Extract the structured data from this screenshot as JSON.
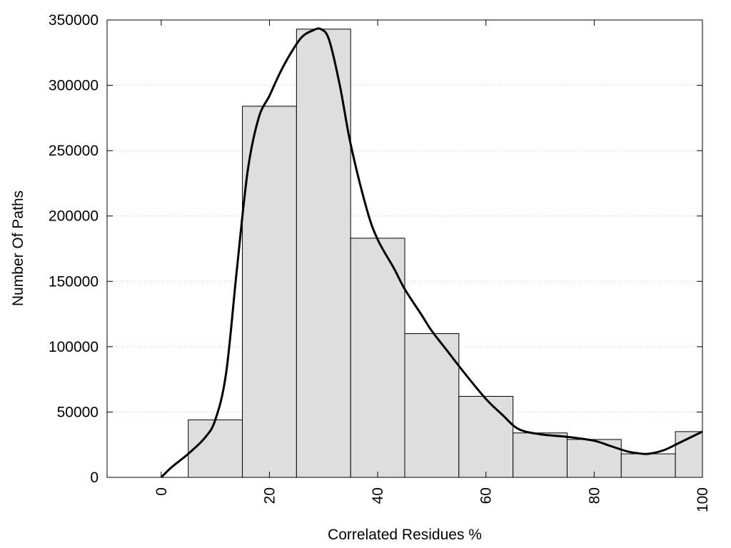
{
  "chart_data": {
    "type": "bar",
    "title": "",
    "xlabel": "Correlated Residues %",
    "ylabel": "Number Of Paths",
    "xlim": [
      -10,
      100
    ],
    "ylim": [
      0,
      350000
    ],
    "x_ticks": [
      "0",
      "20",
      "40",
      "60",
      "80",
      "100"
    ],
    "x_tick_values": [
      0,
      20,
      40,
      60,
      80,
      100
    ],
    "y_ticks": [
      "0",
      "50000",
      "100000",
      "150000",
      "200000",
      "250000",
      "300000",
      "350000"
    ],
    "y_tick_values": [
      0,
      50000,
      100000,
      150000,
      200000,
      250000,
      300000,
      350000
    ],
    "grid": "horizontal dotted",
    "bin_width": 10,
    "bins": [
      {
        "center": 10,
        "value": 44000
      },
      {
        "center": 20,
        "value": 284000
      },
      {
        "center": 30,
        "value": 343000
      },
      {
        "center": 40,
        "value": 183000
      },
      {
        "center": 50,
        "value": 110000
      },
      {
        "center": 60,
        "value": 62000
      },
      {
        "center": 70,
        "value": 34000
      },
      {
        "center": 80,
        "value": 29000
      },
      {
        "center": 90,
        "value": 18000
      },
      {
        "center": 100,
        "value": 35000
      }
    ],
    "curve": {
      "type": "line",
      "x": [
        0,
        2,
        5,
        8,
        10,
        12,
        14,
        16,
        18,
        20,
        22,
        24,
        26,
        28,
        29.5,
        31,
        33,
        35,
        38,
        40,
        43,
        45,
        48,
        50,
        53,
        56,
        60,
        63,
        66,
        70,
        75,
        80,
        83,
        86,
        88,
        90,
        93,
        96,
        100
      ],
      "y": [
        0,
        8000,
        18000,
        30000,
        44000,
        80000,
        160000,
        235000,
        275000,
        292000,
        310000,
        325000,
        337000,
        342000,
        343000,
        335000,
        300000,
        255000,
        205000,
        182000,
        160000,
        144000,
        125000,
        112000,
        96000,
        80000,
        60000,
        48000,
        37000,
        33000,
        31000,
        28000,
        24000,
        20000,
        18500,
        18000,
        21000,
        27000,
        35000
      ]
    },
    "colors": {
      "bar_fill": "#dedede",
      "bar_stroke": "#000000",
      "curve": "#000000",
      "grid": "#c8c8c8"
    }
  }
}
